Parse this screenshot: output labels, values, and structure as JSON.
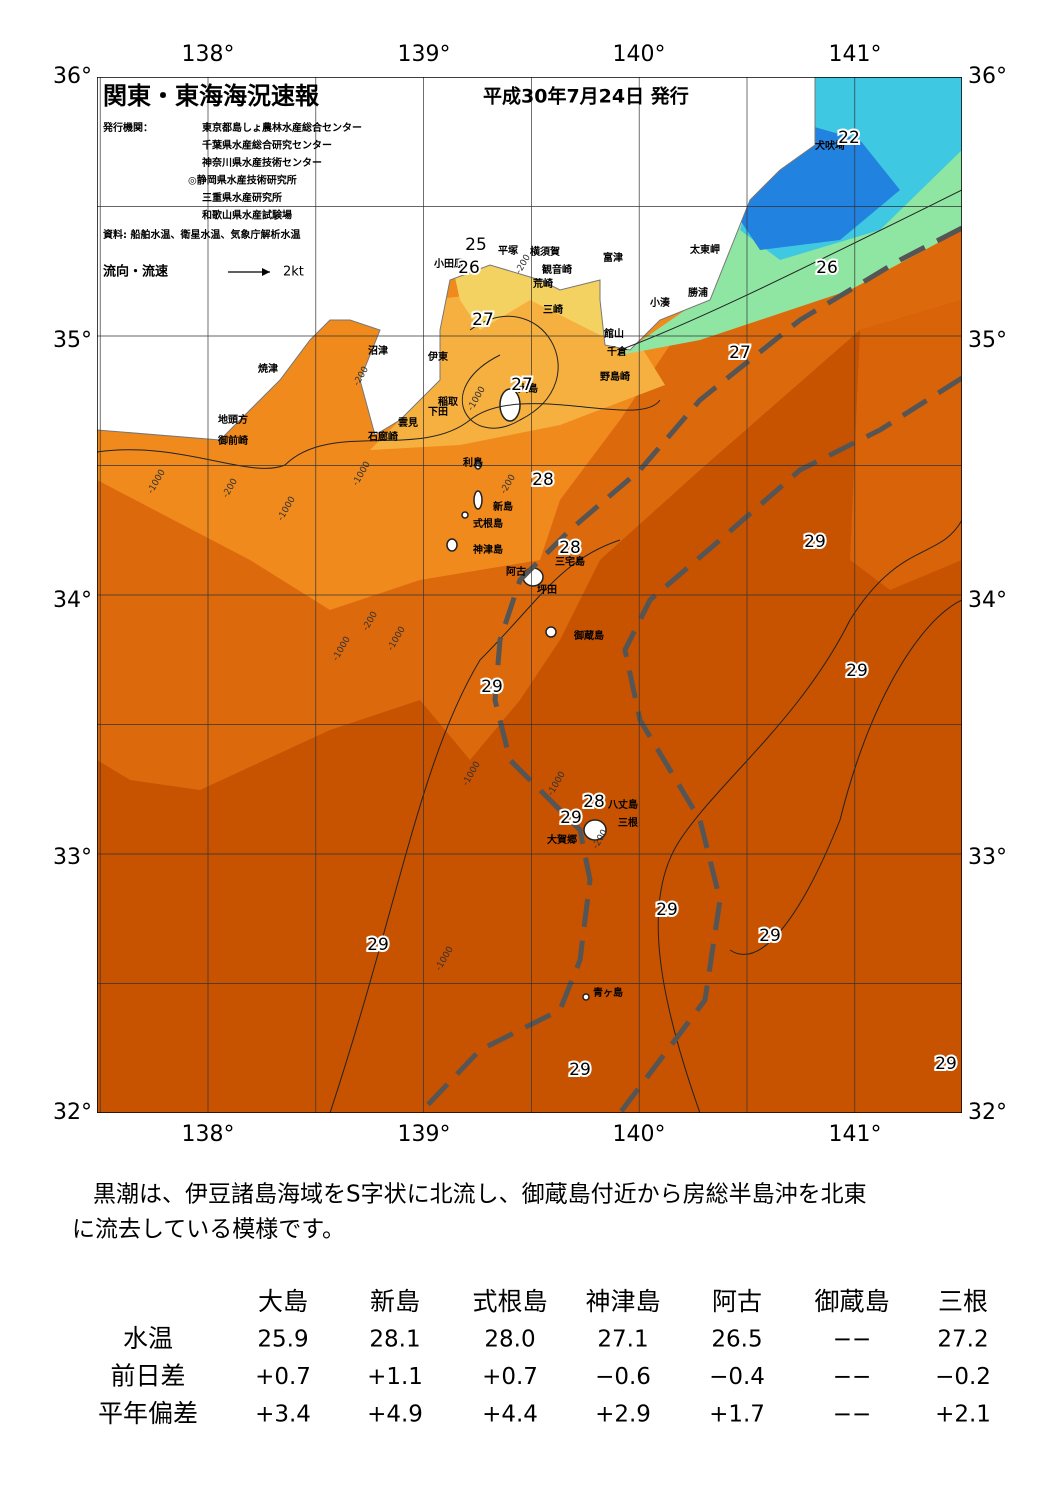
{
  "header": {
    "title": "関東・東海海況速報",
    "date": "平成30年7月24日 発行",
    "publishers_label": "発行機関：",
    "publishers": [
      "東京都島しょ農林水産総合センター",
      "千葉県水産総合研究センター",
      "神奈川県水産技術センター",
      "◎静岡県水産技術研究所",
      "三重県水産研究所",
      "和歌山県水産試験場"
    ],
    "source": "資料: 船舶水温、衛星水温、気象庁解析水温",
    "legend": "流向・流速",
    "legend_speed": "2kt"
  },
  "axes": {
    "lon_labels": [
      "138°",
      "139°",
      "140°",
      "141°"
    ],
    "lat_labels": [
      "36°",
      "35°",
      "34°",
      "33°",
      "32°"
    ]
  },
  "map": {
    "places": [
      "犬吠埼",
      "太東岬",
      "勝浦",
      "小湊",
      "富津",
      "横須賀",
      "平塚",
      "観音崎",
      "荒崎",
      "三崎",
      "館山",
      "千倉",
      "野島崎",
      "小田原",
      "沼津",
      "伊東",
      "焼津",
      "稲取",
      "下田",
      "雲見",
      "石廊崎",
      "地頭方",
      "御前崎",
      "大島",
      "利島",
      "新島",
      "式根島",
      "神津島",
      "三宅島",
      "阿古",
      "坪田",
      "御蔵島",
      "八丈島",
      "三根",
      "大賀郷",
      "青ヶ島"
    ],
    "contour_labels": [
      "22",
      "25",
      "26",
      "26",
      "27",
      "27",
      "27",
      "28",
      "28",
      "29",
      "29",
      "29",
      "28",
      "29",
      "29",
      "29",
      "29",
      "29",
      "29"
    ],
    "depth_labels": [
      "-200",
      "-200",
      "-1000",
      "-1000",
      "-200",
      "-1000",
      "-1000",
      "-1000",
      "-200",
      "-1000",
      "-1000",
      "-1000",
      "-200",
      "-1000",
      "-200"
    ]
  },
  "summary": [
    "黒潮は、伊豆諸島海域をS字状に北流し、御蔵島付近から房総半島沖を北東",
    "に流去している模様です。"
  ],
  "table": {
    "columns": [
      "大島",
      "新島",
      "式根島",
      "神津島",
      "阿古",
      "御蔵島",
      "三根"
    ],
    "rows": [
      {
        "label": "水温",
        "values": [
          "25.9",
          "28.1",
          "28.0",
          "27.1",
          "26.5",
          "−−",
          "27.2"
        ]
      },
      {
        "label": "前日差",
        "values": [
          "+0.7",
          "+1.1",
          "+0.7",
          "−0.6",
          "−0.4",
          "−−",
          "−0.2"
        ]
      },
      {
        "label": "平年偏差",
        "values": [
          "+3.4",
          "+4.9",
          "+4.4",
          "+2.9",
          "+1.7",
          "−−",
          "+2.1"
        ]
      }
    ]
  }
}
